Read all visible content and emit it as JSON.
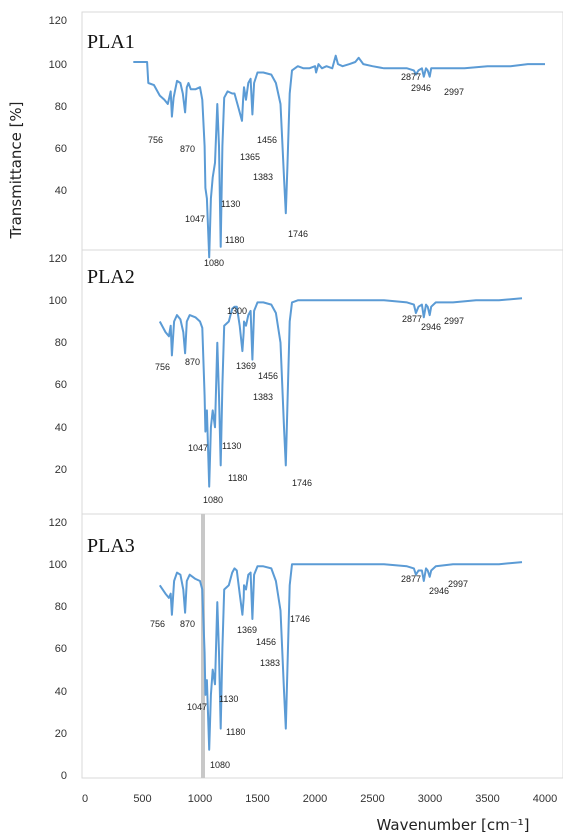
{
  "chart_data": {
    "type": "line",
    "ylabel": "Transmittance [%]",
    "xlabel": "Wavenumber [cm⁻¹]",
    "xlim": [
      0,
      4000
    ],
    "x_ticks": [
      "0",
      "500",
      "1000",
      "1500",
      "2000",
      "2500",
      "3000",
      "3500",
      "4000"
    ],
    "line_color": "#5b9bd5",
    "panels": [
      {
        "title": "PLA1",
        "ylim": [
          0,
          120
        ],
        "y_ticks": [
          "120",
          "100",
          "80",
          "60",
          "40"
        ],
        "points": [
          [
            420,
            100
          ],
          [
            540,
            100
          ],
          [
            550,
            90
          ],
          [
            600,
            89
          ],
          [
            650,
            84
          ],
          [
            690,
            82
          ],
          [
            720,
            80
          ],
          [
            745,
            86
          ],
          [
            756,
            74
          ],
          [
            770,
            83
          ],
          [
            800,
            91
          ],
          [
            830,
            90
          ],
          [
            850,
            85
          ],
          [
            870,
            76
          ],
          [
            885,
            88
          ],
          [
            900,
            90
          ],
          [
            920,
            87
          ],
          [
            960,
            87
          ],
          [
            1000,
            88
          ],
          [
            1020,
            82
          ],
          [
            1040,
            60
          ],
          [
            1047,
            40
          ],
          [
            1060,
            35
          ],
          [
            1080,
            7
          ],
          [
            1095,
            35
          ],
          [
            1110,
            45
          ],
          [
            1130,
            52
          ],
          [
            1150,
            80
          ],
          [
            1165,
            60
          ],
          [
            1180,
            12
          ],
          [
            1195,
            60
          ],
          [
            1210,
            83
          ],
          [
            1240,
            86
          ],
          [
            1280,
            85
          ],
          [
            1300,
            85
          ],
          [
            1330,
            79
          ],
          [
            1365,
            72
          ],
          [
            1375,
            82
          ],
          [
            1383,
            88
          ],
          [
            1400,
            82
          ],
          [
            1420,
            90
          ],
          [
            1440,
            92
          ],
          [
            1456,
            75
          ],
          [
            1470,
            90
          ],
          [
            1500,
            95
          ],
          [
            1550,
            95
          ],
          [
            1620,
            94
          ],
          [
            1660,
            90
          ],
          [
            1700,
            80
          ],
          [
            1730,
            45
          ],
          [
            1746,
            28
          ],
          [
            1760,
            50
          ],
          [
            1780,
            85
          ],
          [
            1800,
            96
          ],
          [
            1850,
            98
          ],
          [
            1900,
            97
          ],
          [
            1950,
            97
          ],
          [
            2000,
            98
          ],
          [
            2010,
            95
          ],
          [
            2030,
            99
          ],
          [
            2060,
            97
          ],
          [
            2100,
            98
          ],
          [
            2150,
            97
          ],
          [
            2180,
            103
          ],
          [
            2200,
            99
          ],
          [
            2240,
            98
          ],
          [
            2300,
            99
          ],
          [
            2350,
            100
          ],
          [
            2380,
            102
          ],
          [
            2420,
            99
          ],
          [
            2500,
            98
          ],
          [
            2600,
            97
          ],
          [
            2700,
            97
          ],
          [
            2800,
            97
          ],
          [
            2860,
            96
          ],
          [
            2877,
            94
          ],
          [
            2900,
            96
          ],
          [
            2930,
            97
          ],
          [
            2946,
            93
          ],
          [
            2965,
            97
          ],
          [
            2980,
            96
          ],
          [
            2997,
            93
          ],
          [
            3010,
            97
          ],
          [
            3100,
            97
          ],
          [
            3300,
            97
          ],
          [
            3500,
            98
          ],
          [
            3700,
            98
          ],
          [
            3850,
            99
          ],
          [
            4000,
            99
          ]
        ],
        "peak_labels": [
          "756",
          "870",
          "1047",
          "1080",
          "1130",
          "1180",
          "1365",
          "1383",
          "1456",
          "1746",
          "2877",
          "2946",
          "2997"
        ]
      },
      {
        "title": "PLA2",
        "ylim": [
          0,
          120
        ],
        "y_ticks": [
          "120",
          "100",
          "80",
          "60",
          "40",
          "20"
        ],
        "points": [
          [
            650,
            90
          ],
          [
            700,
            85
          ],
          [
            730,
            83
          ],
          [
            745,
            88
          ],
          [
            756,
            74
          ],
          [
            775,
            90
          ],
          [
            800,
            93
          ],
          [
            830,
            91
          ],
          [
            855,
            85
          ],
          [
            870,
            75
          ],
          [
            885,
            90
          ],
          [
            910,
            93
          ],
          [
            960,
            92
          ],
          [
            1000,
            90
          ],
          [
            1020,
            87
          ],
          [
            1040,
            55
          ],
          [
            1047,
            38
          ],
          [
            1060,
            48
          ],
          [
            1080,
            12
          ],
          [
            1095,
            40
          ],
          [
            1110,
            48
          ],
          [
            1130,
            40
          ],
          [
            1150,
            80
          ],
          [
            1165,
            55
          ],
          [
            1180,
            22
          ],
          [
            1195,
            60
          ],
          [
            1210,
            88
          ],
          [
            1250,
            90
          ],
          [
            1280,
            96
          ],
          [
            1300,
            97
          ],
          [
            1320,
            97
          ],
          [
            1345,
            88
          ],
          [
            1369,
            76
          ],
          [
            1380,
            85
          ],
          [
            1383,
            90
          ],
          [
            1400,
            88
          ],
          [
            1420,
            93
          ],
          [
            1440,
            95
          ],
          [
            1456,
            72
          ],
          [
            1470,
            95
          ],
          [
            1500,
            99
          ],
          [
            1550,
            99
          ],
          [
            1620,
            98
          ],
          [
            1660,
            94
          ],
          [
            1700,
            80
          ],
          [
            1730,
            40
          ],
          [
            1746,
            22
          ],
          [
            1760,
            50
          ],
          [
            1780,
            90
          ],
          [
            1800,
            99
          ],
          [
            1850,
            100
          ],
          [
            1900,
            100
          ],
          [
            2000,
            100
          ],
          [
            2200,
            100
          ],
          [
            2400,
            100
          ],
          [
            2600,
            100
          ],
          [
            2800,
            99
          ],
          [
            2860,
            98
          ],
          [
            2877,
            94
          ],
          [
            2900,
            97
          ],
          [
            2930,
            98
          ],
          [
            2946,
            92
          ],
          [
            2965,
            98
          ],
          [
            2980,
            97
          ],
          [
            2997,
            93
          ],
          [
            3010,
            97
          ],
          [
            3050,
            99
          ],
          [
            3200,
            99
          ],
          [
            3400,
            100
          ],
          [
            3600,
            100
          ],
          [
            3800,
            101
          ]
        ],
        "peak_labels": [
          "756",
          "870",
          "1047",
          "1080",
          "1130",
          "1180",
          "1300",
          "1369",
          "1383",
          "1456",
          "1746",
          "2877",
          "2946",
          "2997"
        ]
      },
      {
        "title": "PLA3",
        "ylim": [
          0,
          120
        ],
        "y_ticks": [
          "120",
          "100",
          "80",
          "60",
          "40",
          "20",
          "0"
        ],
        "points": [
          [
            650,
            90
          ],
          [
            700,
            86
          ],
          [
            730,
            84
          ],
          [
            745,
            86
          ],
          [
            756,
            76
          ],
          [
            775,
            92
          ],
          [
            800,
            96
          ],
          [
            830,
            95
          ],
          [
            855,
            88
          ],
          [
            870,
            77
          ],
          [
            885,
            92
          ],
          [
            910,
            95
          ],
          [
            960,
            93
          ],
          [
            1000,
            92
          ],
          [
            1020,
            88
          ],
          [
            1040,
            58
          ],
          [
            1047,
            38
          ],
          [
            1060,
            45
          ],
          [
            1080,
            12
          ],
          [
            1095,
            38
          ],
          [
            1110,
            50
          ],
          [
            1130,
            43
          ],
          [
            1150,
            82
          ],
          [
            1165,
            58
          ],
          [
            1180,
            22
          ],
          [
            1195,
            60
          ],
          [
            1210,
            88
          ],
          [
            1250,
            90
          ],
          [
            1280,
            96
          ],
          [
            1300,
            98
          ],
          [
            1320,
            97
          ],
          [
            1345,
            86
          ],
          [
            1369,
            76
          ],
          [
            1380,
            84
          ],
          [
            1383,
            90
          ],
          [
            1400,
            88
          ],
          [
            1420,
            95
          ],
          [
            1440,
            96
          ],
          [
            1456,
            74
          ],
          [
            1470,
            95
          ],
          [
            1500,
            99
          ],
          [
            1550,
            99
          ],
          [
            1620,
            98
          ],
          [
            1660,
            92
          ],
          [
            1700,
            78
          ],
          [
            1730,
            40
          ],
          [
            1746,
            22
          ],
          [
            1760,
            50
          ],
          [
            1780,
            90
          ],
          [
            1800,
            100
          ],
          [
            1850,
            100
          ],
          [
            2000,
            100
          ],
          [
            2200,
            100
          ],
          [
            2400,
            100
          ],
          [
            2600,
            100
          ],
          [
            2800,
            99
          ],
          [
            2860,
            98
          ],
          [
            2877,
            95
          ],
          [
            2900,
            97
          ],
          [
            2930,
            97
          ],
          [
            2946,
            92
          ],
          [
            2965,
            98
          ],
          [
            2980,
            97
          ],
          [
            2997,
            94
          ],
          [
            3010,
            97
          ],
          [
            3050,
            99
          ],
          [
            3200,
            100
          ],
          [
            3400,
            100
          ],
          [
            3600,
            100
          ],
          [
            3800,
            101
          ]
        ],
        "peak_labels": [
          "756",
          "870",
          "1047",
          "1080",
          "1130",
          "1180",
          "1369",
          "1383",
          "1456",
          "1746",
          "2877",
          "2946",
          "2997"
        ]
      }
    ]
  }
}
